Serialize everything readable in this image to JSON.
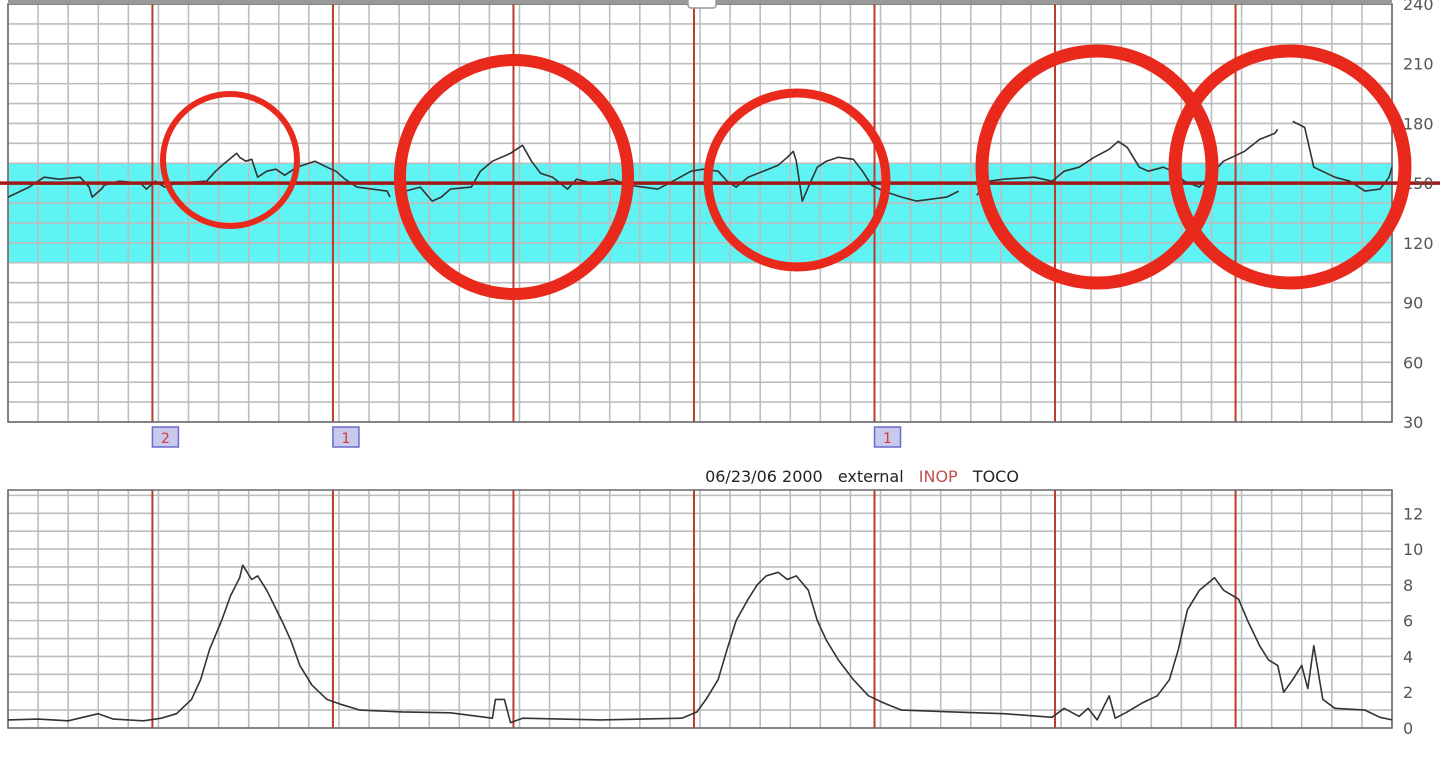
{
  "colors": {
    "grid": "#bdbdbd",
    "major_grid": "#c0392b",
    "trace": "#333333",
    "normal_band": "#5ff3f3",
    "baseline": "#a01818",
    "annotation": "#e8291c",
    "marker_fill": "#c9c9ee",
    "marker_border": "#6b6bcc",
    "inop": "#c0504d"
  },
  "caption": {
    "datetime": "06/23/06 2000",
    "mode": "external",
    "status": "INOP",
    "channel": "TOCO"
  },
  "markers": [
    {
      "label": "2",
      "t": 48
    },
    {
      "label": "1",
      "t": 108
    },
    {
      "label": "1",
      "t": 288
    }
  ],
  "chart_data": [
    {
      "type": "line",
      "title": "",
      "xlabel": "",
      "ylabel": "",
      "xlim_seconds": [
        0,
        460
      ],
      "major_gridline_interval_seconds": 60,
      "first_major_gridline_seconds": 48,
      "minor_gridline_interval_seconds": 10,
      "ylim": [
        30,
        240
      ],
      "y_grid_interval": 10,
      "grid": true,
      "y_ticks": [
        "240",
        "210",
        "180",
        "150",
        "120",
        "90",
        "60",
        "30"
      ],
      "y_tick_values": [
        240,
        210,
        180,
        150,
        120,
        90,
        60,
        30
      ],
      "axis_side": "right",
      "normal_band": [
        110,
        160
      ],
      "baseline": 150,
      "circled_regions_count": 5,
      "series": [
        {
          "points": [
            [
              0,
              143
            ],
            [
              7,
              148
            ],
            [
              12,
              153
            ],
            [
              17,
              152
            ],
            [
              24,
              153
            ],
            [
              27,
              148
            ],
            [
              28,
              143
            ],
            [
              31,
              147
            ],
            [
              32,
              149
            ],
            [
              37,
              151
            ],
            [
              44,
              150
            ],
            [
              46,
              147
            ],
            [
              49,
              151
            ],
            [
              52,
              148
            ],
            [
              56,
              150
            ],
            [
              66,
              151
            ],
            [
              69,
              156
            ],
            [
              72,
              160
            ],
            [
              76,
              165
            ],
            [
              77,
              163
            ],
            [
              79,
              161
            ],
            [
              81,
              162
            ],
            [
              83,
              153
            ],
            [
              86,
              156
            ],
            [
              89,
              157
            ],
            [
              92,
              154
            ],
            [
              96,
              158
            ],
            [
              102,
              161
            ],
            [
              106,
              158
            ],
            [
              109,
              156
            ],
            [
              112,
              152
            ],
            [
              116,
              148
            ],
            [
              121,
              147
            ],
            [
              126,
              146
            ],
            [
              127,
              143
            ],
            null,
            [
              132,
              146
            ],
            [
              137,
              148
            ],
            [
              141,
              141
            ],
            [
              144,
              143
            ],
            [
              147,
              147
            ],
            [
              154,
              148
            ],
            [
              157,
              156
            ],
            [
              161,
              161
            ],
            [
              164,
              163
            ],
            [
              167,
              165
            ],
            [
              171,
              169
            ],
            [
              174,
              161
            ],
            [
              177,
              155
            ],
            [
              181,
              153
            ],
            [
              186,
              147
            ],
            [
              189,
              152
            ],
            [
              194,
              150
            ],
            [
              201,
              152
            ],
            [
              206,
              149
            ],
            [
              211,
              148
            ],
            [
              216,
              147
            ],
            [
              221,
              151
            ],
            [
              227,
              156
            ],
            [
              231,
              157
            ],
            [
              236,
              156
            ],
            [
              239,
              151
            ],
            [
              242,
              148
            ],
            [
              246,
              153
            ],
            [
              251,
              156
            ],
            [
              256,
              159
            ],
            [
              259,
              163
            ],
            [
              261,
              166
            ],
            [
              262,
              161
            ],
            [
              264,
              141
            ],
            [
              266,
              148
            ],
            [
              269,
              158
            ],
            [
              272,
              161
            ],
            [
              276,
              163
            ],
            [
              281,
              162
            ],
            [
              284,
              156
            ],
            [
              287,
              149
            ],
            [
              291,
              146
            ],
            [
              297,
              143
            ],
            [
              302,
              141
            ],
            [
              307,
              142
            ],
            [
              312,
              143
            ],
            [
              316,
              146
            ],
            null,
            [
              322,
              144
            ],
            [
              326,
              151
            ],
            [
              331,
              152
            ],
            [
              341,
              153
            ],
            [
              347,
              151
            ],
            [
              351,
              156
            ],
            [
              356,
              158
            ],
            [
              361,
              163
            ],
            [
              366,
              167
            ],
            [
              369,
              171
            ],
            [
              372,
              168
            ],
            [
              376,
              158
            ],
            [
              379,
              156
            ],
            [
              384,
              158
            ],
            [
              387,
              156
            ],
            [
              391,
              151
            ],
            [
              396,
              148
            ],
            [
              399,
              153
            ],
            [
              404,
              161
            ],
            [
              411,
              166
            ],
            [
              416,
              172
            ],
            [
              421,
              175
            ],
            [
              422,
              177
            ],
            null,
            [
              427,
              181
            ],
            [
              431,
              178
            ],
            [
              434,
              158
            ],
            [
              441,
              153
            ],
            [
              446,
              151
            ],
            [
              451,
              146
            ],
            [
              456,
              147
            ],
            [
              459,
              153
            ],
            [
              460,
              158
            ]
          ]
        }
      ]
    },
    {
      "type": "line",
      "title": "",
      "xlabel": "",
      "ylabel": "",
      "xlim_seconds": [
        0,
        460
      ],
      "ylim": [
        0,
        13.3
      ],
      "y_grid_interval": 1,
      "grid": true,
      "y_ticks": [
        "12",
        "10",
        "8",
        "6",
        "4",
        "2",
        "0"
      ],
      "y_tick_values": [
        12,
        10,
        8,
        6,
        4,
        2,
        0
      ],
      "axis_side": "right",
      "series": [
        {
          "points": [
            [
              0,
              0.45
            ],
            [
              10,
              0.5
            ],
            [
              20,
              0.4
            ],
            [
              30,
              0.8
            ],
            [
              35,
              0.5
            ],
            [
              45,
              0.4
            ],
            [
              51,
              0.55
            ],
            [
              56,
              0.8
            ],
            [
              61,
              1.6
            ],
            [
              64,
              2.7
            ],
            [
              67,
              4.4
            ],
            [
              71,
              6
            ],
            [
              74,
              7.4
            ],
            [
              77,
              8.4
            ],
            [
              78,
              9.1
            ],
            [
              81,
              8.3
            ],
            [
              83,
              8.5
            ],
            [
              86,
              7.7
            ],
            [
              91,
              6
            ],
            [
              94,
              4.9
            ],
            [
              97,
              3.5
            ],
            [
              101,
              2.4
            ],
            [
              106,
              1.6
            ],
            [
              111,
              1.3
            ],
            [
              117,
              1.0
            ],
            [
              131,
              0.9
            ],
            [
              147,
              0.85
            ],
            [
              161,
              0.55
            ],
            [
              162,
              1.6
            ],
            [
              165,
              1.6
            ],
            [
              167,
              0.3
            ],
            [
              171,
              0.55
            ],
            [
              197,
              0.45
            ],
            [
              224,
              0.55
            ],
            [
              229,
              0.9
            ],
            [
              232,
              1.6
            ],
            [
              236,
              2.7
            ],
            [
              239,
              4.4
            ],
            [
              242,
              6
            ],
            [
              246,
              7.2
            ],
            [
              249,
              8
            ],
            [
              252,
              8.5
            ],
            [
              256,
              8.7
            ],
            [
              259,
              8.3
            ],
            [
              262,
              8.5
            ],
            [
              266,
              7.7
            ],
            [
              269,
              6
            ],
            [
              272,
              4.9
            ],
            [
              276,
              3.8
            ],
            [
              281,
              2.7
            ],
            [
              286,
              1.8
            ],
            [
              291,
              1.4
            ],
            [
              297,
              1.0
            ],
            [
              314,
              0.9
            ],
            [
              331,
              0.8
            ],
            [
              347,
              0.6
            ],
            [
              351,
              1.1
            ],
            [
              356,
              0.65
            ],
            [
              359,
              1.1
            ],
            [
              362,
              0.45
            ],
            [
              366,
              1.8
            ],
            [
              368,
              0.55
            ],
            [
              372,
              0.9
            ],
            [
              377,
              1.4
            ],
            [
              382,
              1.8
            ],
            [
              386,
              2.7
            ],
            [
              389,
              4.4
            ],
            [
              392,
              6.6
            ],
            [
              396,
              7.7
            ],
            [
              401,
              8.4
            ],
            [
              404,
              7.7
            ],
            [
              409,
              7.2
            ],
            [
              412,
              6
            ],
            [
              416,
              4.6
            ],
            [
              419,
              3.8
            ],
            [
              422,
              3.5
            ],
            [
              424,
              2.0
            ],
            [
              427,
              2.7
            ],
            [
              430,
              3.5
            ],
            [
              432,
              2.2
            ],
            [
              434,
              4.6
            ],
            [
              437,
              1.6
            ],
            [
              441,
              1.1
            ],
            [
              451,
              1.0
            ],
            [
              456,
              0.6
            ],
            [
              460,
              0.45
            ]
          ]
        }
      ]
    }
  ]
}
